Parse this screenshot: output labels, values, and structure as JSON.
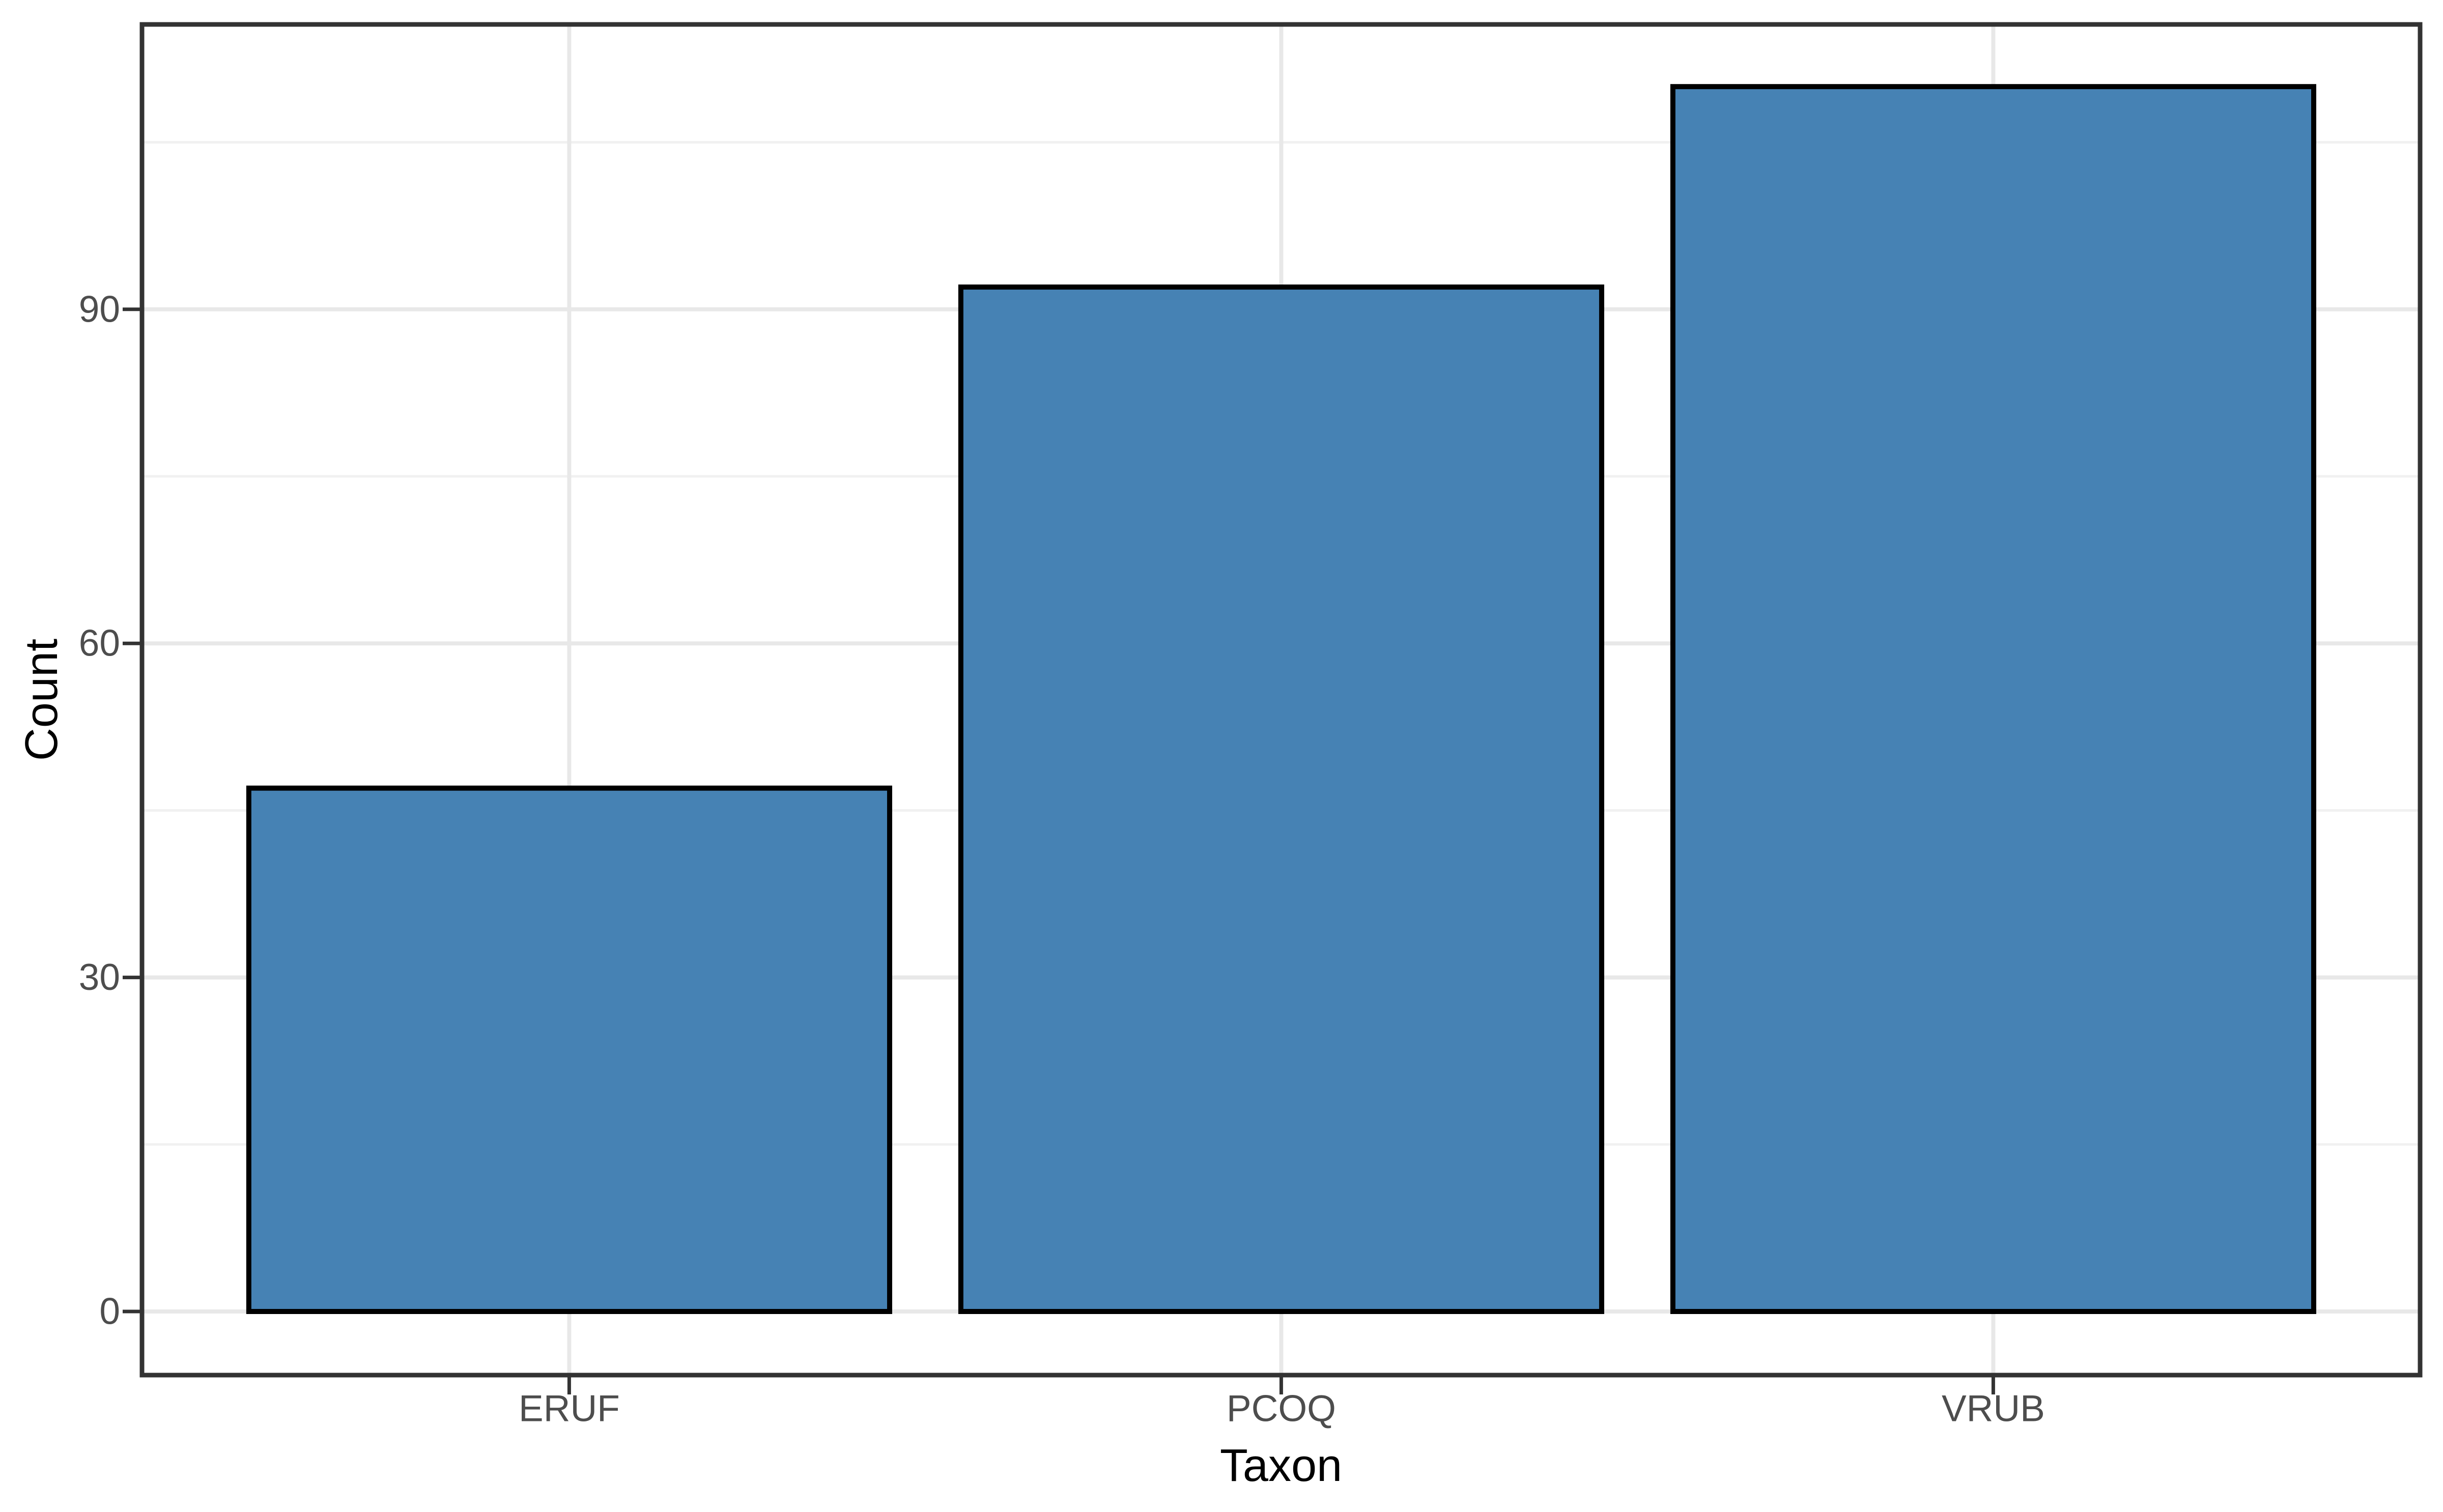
{
  "figure": {
    "background": "#ffffff"
  },
  "chart_data": {
    "type": "bar",
    "categories": [
      "ERUF",
      "PCOQ",
      "VRUB"
    ],
    "values": [
      47,
      92,
      110
    ],
    "title": "",
    "xlabel": "Taxon",
    "ylabel": "Count",
    "y_major_ticks": [
      0,
      30,
      60,
      90
    ],
    "y_major_tick_labels": [
      "0",
      "30",
      "60",
      "90"
    ],
    "y_minor_ticks": [
      15,
      45,
      75,
      105
    ],
    "ylim": [
      -5.5,
      115.5
    ],
    "grid": "on",
    "legend": "none",
    "colors": {
      "bar_fill": "#4682B4",
      "bar_outline": "#000000",
      "panel_border": "#333333",
      "tick_mark": "#333333",
      "major_gridline": "#E8E8E8",
      "minor_gridline": "#F1F1F1",
      "tick_label": "#4d4d4d",
      "axis_title": "#000000",
      "panel_background": "#ffffff"
    }
  }
}
